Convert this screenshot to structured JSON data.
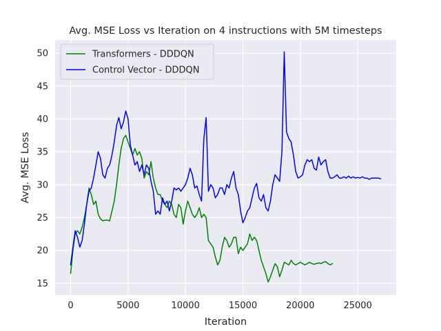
{
  "chart_data": {
    "type": "line",
    "title": "Avg. MSE Loss vs Iteration on 4 instructions with 5M timesteps",
    "xlabel": "Iteration",
    "ylabel": "Avg. MSE Loss",
    "xlim": [
      -1350,
      28350
    ],
    "ylim": [
      13.2,
      52.0
    ],
    "xticks": [
      0,
      5000,
      10000,
      15000,
      20000,
      25000
    ],
    "yticks": [
      15,
      20,
      25,
      30,
      35,
      40,
      45,
      50
    ],
    "grid": true,
    "legend_position": "top-left",
    "series": [
      {
        "name": "Transformers - DDDQN",
        "color": "#008000",
        "x": [
          0,
          200,
          400,
          600,
          800,
          1000,
          1200,
          1400,
          1600,
          1800,
          2000,
          2200,
          2400,
          2600,
          2800,
          3000,
          3200,
          3400,
          3600,
          3800,
          4000,
          4200,
          4400,
          4600,
          4800,
          5000,
          5200,
          5400,
          5600,
          5800,
          6000,
          6200,
          6400,
          6600,
          6800,
          7000,
          7200,
          7400,
          7600,
          7800,
          8000,
          8200,
          8400,
          8600,
          8800,
          9000,
          9200,
          9400,
          9600,
          9800,
          10000,
          10200,
          10400,
          10600,
          10800,
          11000,
          11200,
          11400,
          11600,
          11800,
          12000,
          12200,
          12400,
          12600,
          12800,
          13000,
          13200,
          13400,
          13600,
          13800,
          14000,
          14200,
          14400,
          14600,
          14800,
          15000,
          15200,
          15400,
          15600,
          15800,
          16000,
          16200,
          16400,
          16600,
          16800,
          17000,
          17200,
          17400,
          17600,
          17800,
          18000,
          18200,
          18400,
          18600,
          18800,
          19000,
          19200,
          19400,
          19600,
          19800,
          20000,
          20200,
          20400,
          20600,
          20800,
          21000,
          21200,
          21400,
          21600,
          21800,
          22000,
          22200,
          22400,
          22600,
          22800
        ],
        "y": [
          16.5,
          20.0,
          22.5,
          23.0,
          22.5,
          23.5,
          25.0,
          27.0,
          29.5,
          28.5,
          27.0,
          27.5,
          25.5,
          24.8,
          24.5,
          24.6,
          24.6,
          24.5,
          26.0,
          27.5,
          30.0,
          33.0,
          35.5,
          37.0,
          37.5,
          36.5,
          35.5,
          34.5,
          35.5,
          34.5,
          35.0,
          34.0,
          31.0,
          32.0,
          31.5,
          33.5,
          31.0,
          29.5,
          28.5,
          28.5,
          27.5,
          27.0,
          26.5,
          27.5,
          27.0,
          25.5,
          25.0,
          27.0,
          26.5,
          24.0,
          26.0,
          27.5,
          26.5,
          25.5,
          25.0,
          25.5,
          26.5,
          25.0,
          25.5,
          25.0,
          21.5,
          21.0,
          20.5,
          19.0,
          17.8,
          18.5,
          20.5,
          22.0,
          21.5,
          20.5,
          21.0,
          22.0,
          22.0,
          19.5,
          20.5,
          20.0,
          20.5,
          21.0,
          22.5,
          21.5,
          22.0,
          21.5,
          20.0,
          18.5,
          17.5,
          16.5,
          15.2,
          16.0,
          17.0,
          18.0,
          17.5,
          16.0,
          17.0,
          18.2,
          18.0,
          17.8,
          18.5,
          18.0,
          17.8,
          18.0,
          18.2,
          18.0,
          17.8,
          18.0,
          18.2,
          18.0,
          17.9,
          18.0,
          18.1,
          18.0,
          18.2,
          18.3,
          18.0,
          17.8,
          18.0
        ]
      },
      {
        "name": "Control Vector - DDDQN",
        "color": "#0000ff",
        "x": [
          0,
          200,
          400,
          600,
          800,
          1000,
          1200,
          1400,
          1600,
          1800,
          2000,
          2200,
          2400,
          2600,
          2800,
          3000,
          3200,
          3400,
          3600,
          3800,
          4000,
          4200,
          4400,
          4600,
          4800,
          5000,
          5200,
          5400,
          5600,
          5800,
          6000,
          6200,
          6400,
          6600,
          6800,
          7000,
          7200,
          7400,
          7600,
          7800,
          8000,
          8200,
          8400,
          8600,
          8800,
          9000,
          9200,
          9400,
          9600,
          9800,
          10000,
          10200,
          10400,
          10600,
          10800,
          11000,
          11200,
          11400,
          11600,
          11800,
          12000,
          12200,
          12400,
          12600,
          12800,
          13000,
          13200,
          13400,
          13600,
          13800,
          14000,
          14200,
          14400,
          14600,
          14800,
          15000,
          15200,
          15400,
          15600,
          15800,
          16000,
          16200,
          16400,
          16600,
          16800,
          17000,
          17200,
          17400,
          17600,
          17800,
          18000,
          18200,
          18400,
          18600,
          18800,
          19000,
          19200,
          19400,
          19600,
          19800,
          20000,
          20200,
          20400,
          20600,
          20800,
          21000,
          21200,
          21400,
          21600,
          21800,
          22000,
          22200,
          22400,
          22600,
          22800,
          23000,
          23200,
          23400,
          23600,
          23800,
          24000,
          24200,
          24400,
          24600,
          24800,
          25000,
          25200,
          25400,
          25600,
          25800,
          26000,
          26200,
          26400,
          26600,
          26800,
          27000
        ],
        "y": [
          17.8,
          20.5,
          23.0,
          22.0,
          20.5,
          21.5,
          24.0,
          27.0,
          29.0,
          29.5,
          31.0,
          33.0,
          35.0,
          34.0,
          31.5,
          31.0,
          32.5,
          33.0,
          34.5,
          36.5,
          39.0,
          40.2,
          38.5,
          39.5,
          41.2,
          40.0,
          36.0,
          34.5,
          33.0,
          33.5,
          32.0,
          33.0,
          31.5,
          33.0,
          32.5,
          30.5,
          29.0,
          25.5,
          26.0,
          25.5,
          28.0,
          27.0,
          27.5,
          26.0,
          27.5,
          29.5,
          29.2,
          29.5,
          29.0,
          29.5,
          30.0,
          31.0,
          32.5,
          31.5,
          29.5,
          29.8,
          28.5,
          27.5,
          37.0,
          40.2,
          29.0,
          30.0,
          29.5,
          28.0,
          28.5,
          29.5,
          29.5,
          28.5,
          30.0,
          29.5,
          31.0,
          32.0,
          29.5,
          28.5,
          26.0,
          24.2,
          25.0,
          26.0,
          26.5,
          28.0,
          29.5,
          30.2,
          28.0,
          27.5,
          28.5,
          26.5,
          26.0,
          27.5,
          30.0,
          31.5,
          31.0,
          30.5,
          35.0,
          50.2,
          38.0,
          37.0,
          36.5,
          34.5,
          32.0,
          31.0,
          31.2,
          31.5,
          33.0,
          33.8,
          33.5,
          33.8,
          32.5,
          32.2,
          34.2,
          33.0,
          33.5,
          33.8,
          32.0,
          31.0,
          31.0,
          31.2,
          31.5,
          31.0,
          31.0,
          31.2,
          31.0,
          31.3,
          31.0,
          31.2,
          31.0,
          31.1,
          31.0,
          31.2,
          31.0,
          31.0,
          30.8,
          31.0,
          31.0,
          31.0,
          31.0,
          30.9
        ]
      }
    ]
  }
}
